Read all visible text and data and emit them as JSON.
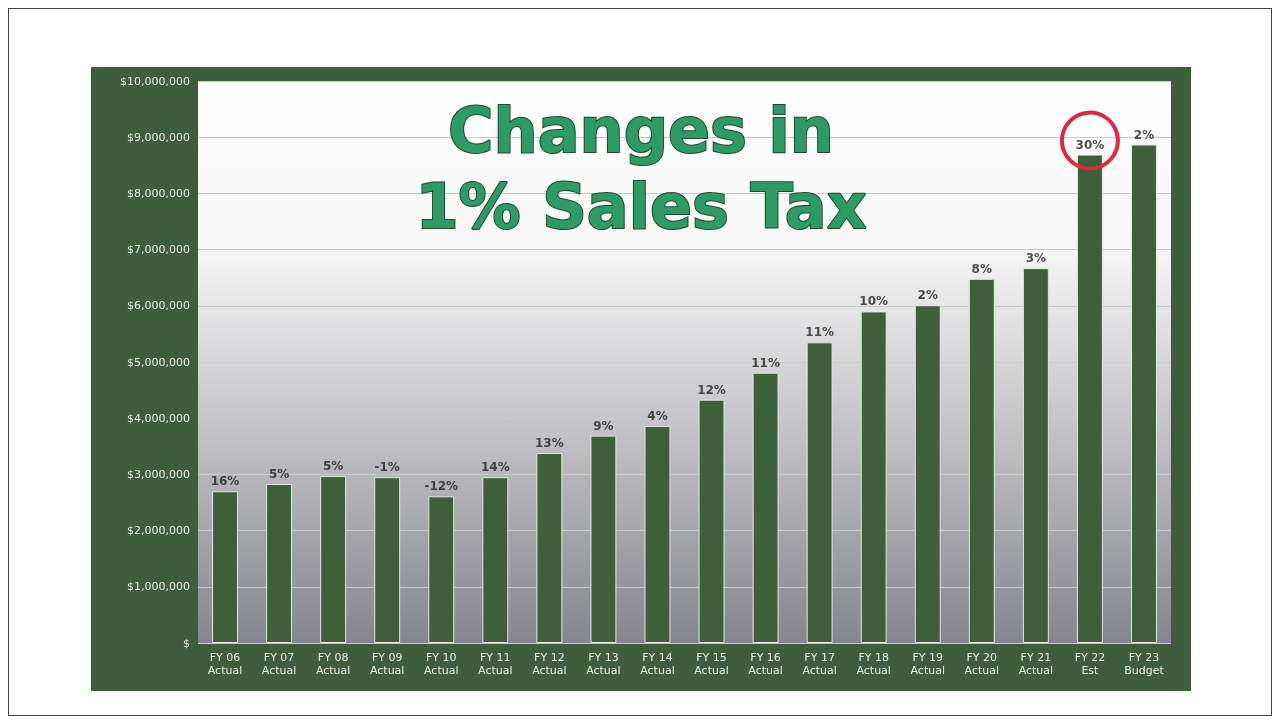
{
  "chart_data": {
    "type": "bar",
    "title": "Changes in\n1% Sales Tax",
    "categories": [
      "FY 06\nActual",
      "FY 07\nActual",
      "FY 08\nActual",
      "FY 09\nActual",
      "FY 10\nActual",
      "FY 11\nActual",
      "FY 12\nActual",
      "FY 13\nActual",
      "FY 14\nActual",
      "FY 15\nActual",
      "FY 16\nActual",
      "FY 17\nActual",
      "FY 18\nActual",
      "FY 19\nActual",
      "FY 20\nActual",
      "FY 21\nActual",
      "FY 22\nEst",
      "FY 23\nBudget"
    ],
    "values": [
      2700000,
      2830000,
      2970000,
      2950000,
      2610000,
      2950000,
      3380000,
      3690000,
      3860000,
      4330000,
      4810000,
      5350000,
      5900000,
      6010000,
      6480000,
      6670000,
      8690000,
      8870000
    ],
    "annotations": [
      {
        "text": "16%",
        "x": "FY 06\nActual",
        "y": 2700000
      },
      {
        "text": "5%",
        "x": "FY 07\nActual",
        "y": 2830000
      },
      {
        "text": "5%",
        "x": "FY 08\nActual",
        "y": 2970000
      },
      {
        "text": "-1%",
        "x": "FY 09\nActual",
        "y": 2950000
      },
      {
        "text": "-12%",
        "x": "FY 10\nActual",
        "y": 2610000
      },
      {
        "text": "14%",
        "x": "FY 11\nActual",
        "y": 2950000
      },
      {
        "text": "13%",
        "x": "FY 12\nActual",
        "y": 3380000
      },
      {
        "text": "9%",
        "x": "FY 13\nActual",
        "y": 3690000
      },
      {
        "text": "4%",
        "x": "FY 14\nActual",
        "y": 3860000
      },
      {
        "text": "12%",
        "x": "FY 15\nActual",
        "y": 4330000
      },
      {
        "text": "11%",
        "x": "FY 16\nActual",
        "y": 4810000
      },
      {
        "text": "11%",
        "x": "FY 17\nActual",
        "y": 5350000
      },
      {
        "text": "10%",
        "x": "FY 18\nActual",
        "y": 5900000
      },
      {
        "text": "2%",
        "x": "FY 19\nActual",
        "y": 6010000
      },
      {
        "text": "8%",
        "x": "FY 20\nActual",
        "y": 6480000
      },
      {
        "text": "3%",
        "x": "FY 21\nActual",
        "y": 6670000
      },
      {
        "text": "30%",
        "x": "FY 22\nEst",
        "y": 8690000
      },
      {
        "text": "2%",
        "x": "FY 23\nBudget",
        "y": 8870000
      }
    ],
    "color": "#3d6039",
    "ylim": [
      0,
      10000000
    ],
    "yticks": [
      {
        "value": 0,
        "label": "$"
      },
      {
        "value": 1000000,
        "label": "$1,000,000"
      },
      {
        "value": 2000000,
        "label": "$2,000,000"
      },
      {
        "value": 3000000,
        "label": "$3,000,000"
      },
      {
        "value": 4000000,
        "label": "$4,000,000"
      },
      {
        "value": 5000000,
        "label": "$5,000,000"
      },
      {
        "value": 6000000,
        "label": "$6,000,000"
      },
      {
        "value": 7000000,
        "label": "$7,000,000"
      },
      {
        "value": 8000000,
        "label": "$8,000,000"
      },
      {
        "value": 9000000,
        "label": "$9,000,000"
      },
      {
        "value": 10000000,
        "label": "$10,000,000"
      }
    ],
    "grid": "y"
  }
}
